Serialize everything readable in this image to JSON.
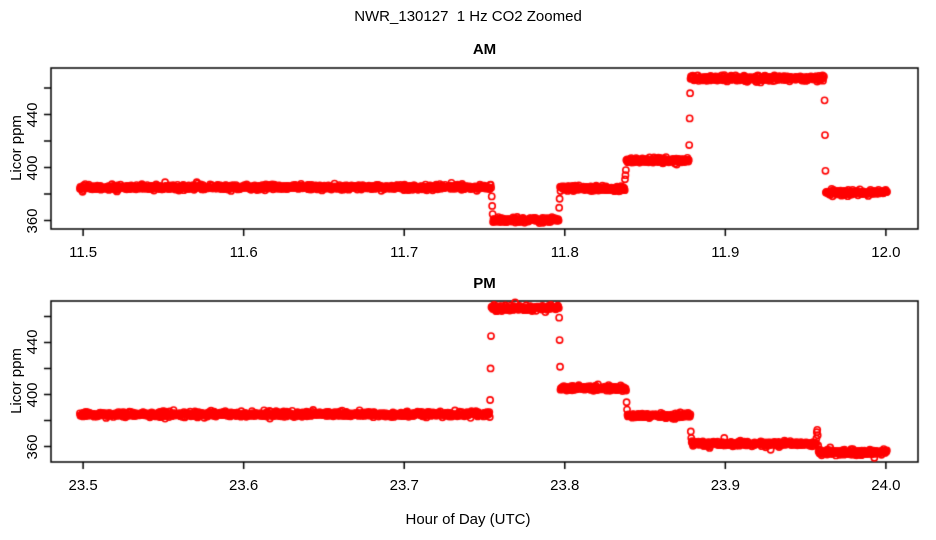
{
  "page_title": "NWR_130127  1 Hz CO2 Zoomed",
  "xlabel": "Hour of Day (UTC)",
  "point_color": "#FF0000",
  "axis_color": "#000000",
  "background_color": "#FFFFFF",
  "chart_data": [
    {
      "type": "scatter",
      "title": "AM",
      "xlabel": "",
      "ylabel": "Licor ppm",
      "marker": "open-circle",
      "color": "#FF0000",
      "sample_rate_hz": 1,
      "noise_sd_ppm": 1.0,
      "xlim": [
        11.48,
        12.02
      ],
      "ylim": [
        353.6,
        475.1
      ],
      "x_ticks": [
        11.5,
        11.6,
        11.7,
        11.8,
        11.9,
        12.0
      ],
      "x_tick_labels": [
        "11.5",
        "11.6",
        "11.7",
        "11.8",
        "11.9",
        "12.0"
      ],
      "y_ticks": [
        360,
        380,
        400,
        420,
        440,
        460
      ],
      "y_tick_labels": [
        "360",
        "",
        "400",
        "",
        "440",
        ""
      ],
      "segments": [
        {
          "start_hour": 11.498,
          "end_hour": 11.7545,
          "co2_ppm": 385.0,
          "lead_in_ppm": []
        },
        {
          "start_hour": 11.7545,
          "end_hour": 11.7965,
          "co2_ppm": 360.4,
          "lead_in_ppm": [
            378,
            371,
            365
          ]
        },
        {
          "start_hour": 11.7965,
          "end_hour": 11.8375,
          "co2_ppm": 384.2,
          "lead_in_ppm": [
            370,
            377
          ]
        },
        {
          "start_hour": 11.8375,
          "end_hour": 11.8775,
          "co2_ppm": 405.2,
          "lead_in_ppm": [
            390.5,
            394.3,
            398.1
          ]
        },
        {
          "start_hour": 11.8775,
          "end_hour": 11.9618,
          "co2_ppm": 467.3,
          "lead_in_ppm": [
            417,
            437,
            456
          ]
        },
        {
          "start_hour": 11.9618,
          "end_hour": 12.001,
          "co2_ppm": 381.2,
          "lead_in_ppm": [
            451,
            424,
            398
          ]
        }
      ]
    },
    {
      "type": "scatter",
      "title": "PM",
      "xlabel": "",
      "ylabel": "Licor ppm",
      "marker": "open-circle",
      "color": "#FF0000",
      "sample_rate_hz": 1,
      "noise_sd_ppm": 1.0,
      "xlim": [
        23.48,
        24.02
      ],
      "ylim": [
        348.1,
        471.9
      ],
      "x_ticks": [
        23.5,
        23.6,
        23.7,
        23.8,
        23.9,
        24.0
      ],
      "x_tick_labels": [
        "23.5",
        "23.6",
        "23.7",
        "23.8",
        "23.9",
        "24.0"
      ],
      "y_ticks": [
        360,
        380,
        400,
        420,
        440,
        460
      ],
      "y_tick_labels": [
        "360",
        "",
        "400",
        "",
        "440",
        ""
      ],
      "segments": [
        {
          "start_hour": 23.498,
          "end_hour": 23.7535,
          "co2_ppm": 384.8,
          "lead_in_ppm": []
        },
        {
          "start_hour": 23.7535,
          "end_hour": 23.7965,
          "co2_ppm": 466.4,
          "lead_in_ppm": [
            396,
            420,
            445.5
          ]
        },
        {
          "start_hour": 23.7965,
          "end_hour": 23.8385,
          "co2_ppm": 404.8,
          "lead_in_ppm": [
            459,
            442,
            421
          ]
        },
        {
          "start_hour": 23.8385,
          "end_hour": 23.8785,
          "co2_ppm": 383.8,
          "lead_in_ppm": [
            394.5,
            388
          ]
        },
        {
          "start_hour": 23.8785,
          "end_hour": 23.9567,
          "co2_ppm": 362.2,
          "lead_in_ppm": [
            371.4,
            366.5
          ]
        },
        {
          "start_hour": 23.9567,
          "end_hour": 24.001,
          "co2_ppm": 355.4,
          "lead_in_ppm": [
            366,
            371,
            372,
            368,
            361
          ]
        }
      ]
    }
  ]
}
